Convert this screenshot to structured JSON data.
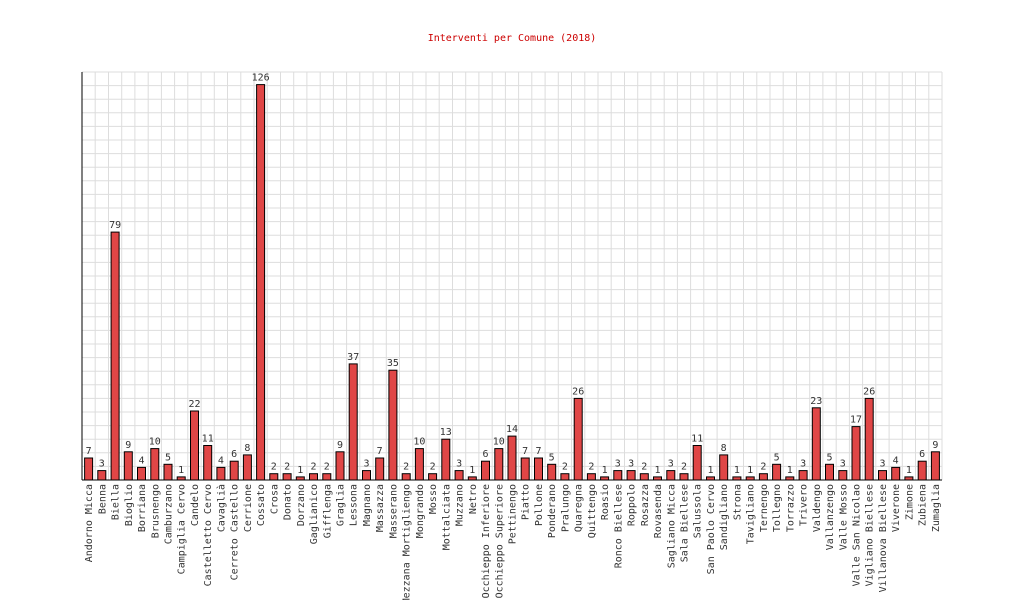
{
  "chart_data": {
    "type": "bar",
    "title": "Interventi per Comune (2018)",
    "xlabel": "",
    "ylabel": "",
    "ylim": [
      0,
      130
    ],
    "grid": true,
    "legend": "none",
    "colors": {
      "bar": "#e04646",
      "bar_stroke": "#000000",
      "title": "#cc0000",
      "grid": "#dddddd"
    },
    "categories": [
      "Andorno Micca",
      "Benna",
      "Biella",
      "Bioglio",
      "Borriana",
      "Brusnengo",
      "Camburzano",
      "Campiglia Cervo",
      "Candelo",
      "Castelletto Cervo",
      "Cavaglià",
      "Cerreto Castello",
      "Cerrione",
      "Cossato",
      "Crosa",
      "Donato",
      "Dorzano",
      "Gaglianico",
      "Gifflenga",
      "Graglia",
      "Lessona",
      "Magnano",
      "Massazza",
      "Masserano",
      "Mezzana Mortigliengo",
      "Mongrando",
      "Mosso",
      "Mottalciata",
      "Muzzano",
      "Netro",
      "Occhieppo Inferiore",
      "Occhieppo Superiore",
      "Pettinengo",
      "Piatto",
      "Pollone",
      "Ponderano",
      "Pralungo",
      "Quaregna",
      "Quittengo",
      "Roasio",
      "Ronco Biellese",
      "Roppolo",
      "Rosazza",
      "Rovasenda",
      "Sagliano Micca",
      "Sala Biellese",
      "Salussola",
      "San Paolo Cervo",
      "Sandigliano",
      "Strona",
      "Tavigliano",
      "Ternengo",
      "Tollegno",
      "Torrazzo",
      "Trivero",
      "Valdengo",
      "Vallanzengo",
      "Valle Mosso",
      "Valle San Nicolao",
      "Vigliano Biellese",
      "Villanova Biellese",
      "Viverone",
      "Zimone",
      "Zubiena",
      "Zumaglia"
    ],
    "values": [
      7,
      3,
      79,
      9,
      4,
      10,
      5,
      1,
      22,
      11,
      4,
      6,
      8,
      126,
      2,
      2,
      1,
      2,
      2,
      9,
      37,
      3,
      7,
      35,
      2,
      10,
      2,
      13,
      3,
      1,
      6,
      10,
      14,
      7,
      7,
      5,
      2,
      26,
      2,
      1,
      3,
      3,
      2,
      1,
      3,
      2,
      11,
      1,
      8,
      1,
      1,
      2,
      5,
      1,
      3,
      23,
      5,
      3,
      17,
      26,
      3,
      4,
      1,
      6,
      9
    ]
  }
}
